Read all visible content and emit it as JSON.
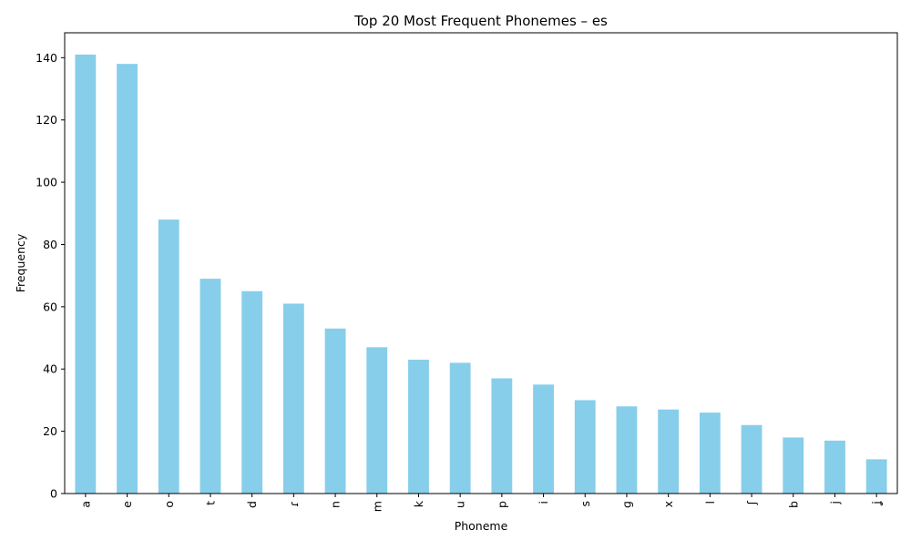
{
  "chart_data": {
    "type": "bar",
    "title": "Top 20 Most Frequent Phonemes – es",
    "xlabel": "Phoneme",
    "ylabel": "Frequency",
    "categories": [
      "a",
      "e",
      "o",
      "t",
      "d",
      "ɾ",
      "n",
      "m",
      "k",
      "u",
      "p",
      "i",
      "s",
      "ɡ",
      "x",
      "l",
      "ʃ",
      "b",
      "j",
      "ʝ"
    ],
    "values": [
      141,
      138,
      88,
      69,
      65,
      61,
      53,
      47,
      43,
      42,
      37,
      35,
      30,
      28,
      27,
      26,
      22,
      18,
      17,
      11
    ],
    "ylim": [
      0,
      148
    ],
    "yticks": [
      0,
      20,
      40,
      60,
      80,
      100,
      120,
      140
    ],
    "grid": false,
    "legend": "none",
    "bar_color": "#87ceeb"
  }
}
